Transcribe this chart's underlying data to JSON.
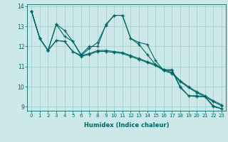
{
  "xlabel": "Humidex (Indice chaleur)",
  "bg_color": "#cce8e8",
  "grid_color": "#99cccc",
  "line_color": "#006666",
  "xlim": [
    -0.5,
    23.5
  ],
  "ylim": [
    8.8,
    14.1
  ],
  "xticks": [
    0,
    1,
    2,
    3,
    4,
    5,
    6,
    7,
    8,
    9,
    10,
    11,
    12,
    13,
    14,
    15,
    16,
    17,
    18,
    19,
    20,
    21,
    22,
    23
  ],
  "yticks": [
    9,
    10,
    11,
    12,
    13,
    14
  ],
  "series": [
    [
      13.75,
      12.4,
      11.8,
      13.1,
      12.8,
      12.25,
      11.6,
      12.0,
      12.0,
      13.1,
      13.55,
      13.55,
      12.4,
      12.2,
      12.1,
      11.3,
      10.8,
      10.8,
      9.95,
      9.55,
      9.55,
      9.5,
      9.0,
      8.9
    ],
    [
      13.75,
      12.4,
      11.8,
      13.1,
      12.5,
      12.25,
      11.55,
      11.9,
      12.2,
      13.05,
      13.55,
      13.55,
      12.4,
      12.1,
      11.6,
      11.1,
      10.85,
      10.85,
      10.0,
      9.55,
      9.5,
      9.5,
      9.05,
      8.9
    ],
    [
      13.75,
      12.4,
      11.8,
      12.3,
      12.25,
      11.75,
      11.55,
      11.65,
      11.8,
      11.8,
      11.75,
      11.7,
      11.55,
      11.4,
      11.25,
      11.1,
      10.85,
      10.7,
      10.3,
      10.0,
      9.75,
      9.55,
      9.3,
      9.1
    ],
    [
      13.75,
      12.4,
      11.8,
      12.3,
      12.25,
      11.75,
      11.5,
      11.6,
      11.75,
      11.75,
      11.7,
      11.65,
      11.5,
      11.35,
      11.2,
      11.05,
      10.8,
      10.65,
      10.25,
      9.95,
      9.7,
      9.5,
      9.25,
      9.05
    ]
  ]
}
